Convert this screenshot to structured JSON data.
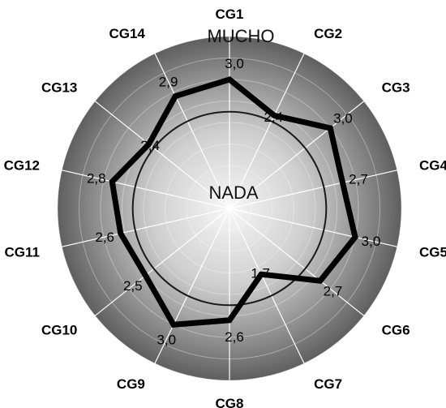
{
  "chart_data": {
    "type": "radar",
    "categories": [
      "CG1",
      "CG2",
      "CG3",
      "CG4",
      "CG5",
      "CG6",
      "CG7",
      "CG8",
      "CG9",
      "CG10",
      "CG11",
      "CG12",
      "CG13",
      "CG14"
    ],
    "values": [
      3.0,
      2.4,
      3.0,
      2.7,
      3.0,
      2.7,
      1.7,
      2.6,
      3.0,
      2.5,
      2.6,
      2.8,
      2.4,
      2.9
    ],
    "value_labels": [
      "3,0",
      "2,4",
      "3,0",
      "2,7",
      "3,0",
      "2,7",
      "1,7",
      "2,6",
      "3,0",
      "2,5",
      "2,6",
      "2,8",
      "2,4",
      "2,9"
    ],
    "scale_min": 0,
    "scale_max": 4,
    "reference_circle_value": 2.25,
    "center_label": "NADA",
    "outer_label": "MUCHO",
    "colors": {
      "series_line": "#000000",
      "reference_circle": "#1a1a1a",
      "background_outer": "#5a5a5a",
      "background_inner": "#f4f4f4",
      "spokes": "#ffffff"
    }
  }
}
